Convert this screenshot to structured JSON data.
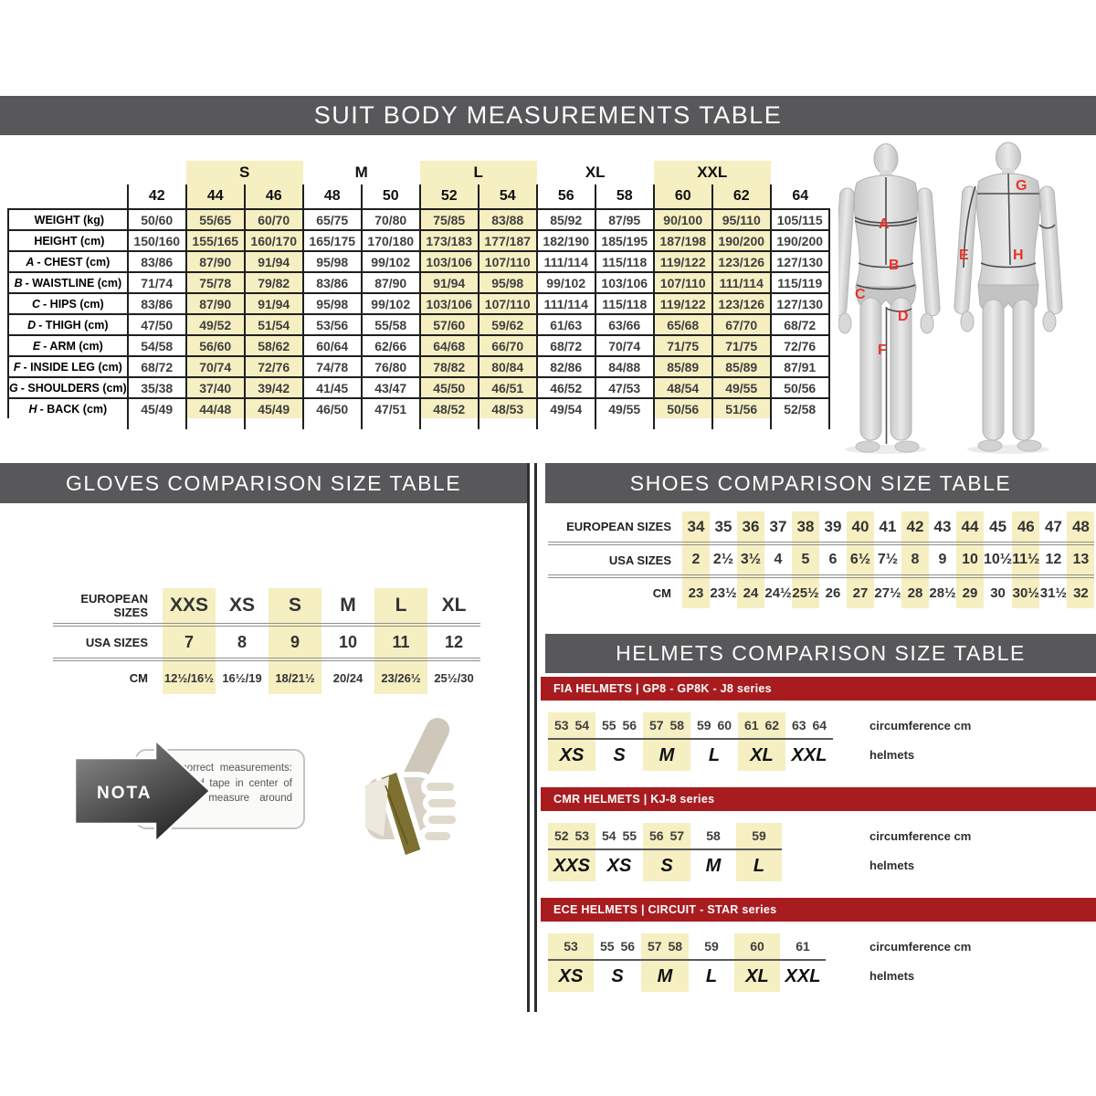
{
  "suit": {
    "title": "SUIT BODY MEASUREMENTS TABLE",
    "groups": [
      {
        "label": "",
        "span": 1,
        "hl": false
      },
      {
        "label": "S",
        "span": 2,
        "hl": true
      },
      {
        "label": "M",
        "span": 2,
        "hl": false
      },
      {
        "label": "L",
        "span": 2,
        "hl": true
      },
      {
        "label": "XL",
        "span": 2,
        "hl": false
      },
      {
        "label": "XXL",
        "span": 2,
        "hl": true
      },
      {
        "label": "",
        "span": 1,
        "hl": false
      }
    ],
    "sizes": [
      "42",
      "44",
      "46",
      "48",
      "50",
      "52",
      "54",
      "56",
      "58",
      "60",
      "62",
      "64"
    ],
    "highlight_cols": [
      1,
      2,
      5,
      6,
      9,
      10
    ],
    "rows": [
      {
        "letter": "",
        "name": "WEIGHT (kg)",
        "values": [
          "50/60",
          "55/65",
          "60/70",
          "65/75",
          "70/80",
          "75/85",
          "83/88",
          "85/92",
          "87/95",
          "90/100",
          "95/110",
          "105/115"
        ]
      },
      {
        "letter": "",
        "name": "HEIGHT (cm)",
        "values": [
          "150/160",
          "155/165",
          "160/170",
          "165/175",
          "170/180",
          "173/183",
          "177/187",
          "182/190",
          "185/195",
          "187/198",
          "190/200",
          "190/200"
        ]
      },
      {
        "letter": "A",
        "name": "- CHEST (cm)",
        "values": [
          "83/86",
          "87/90",
          "91/94",
          "95/98",
          "99/102",
          "103/106",
          "107/110",
          "111/114",
          "115/118",
          "119/122",
          "123/126",
          "127/130"
        ]
      },
      {
        "letter": "B",
        "name": "- WAISTLINE (cm)",
        "values": [
          "71/74",
          "75/78",
          "79/82",
          "83/86",
          "87/90",
          "91/94",
          "95/98",
          "99/102",
          "103/106",
          "107/110",
          "111/114",
          "115/119"
        ]
      },
      {
        "letter": "C",
        "name": "- HIPS (cm)",
        "values": [
          "83/86",
          "87/90",
          "91/94",
          "95/98",
          "99/102",
          "103/106",
          "107/110",
          "111/114",
          "115/118",
          "119/122",
          "123/126",
          "127/130"
        ]
      },
      {
        "letter": "D",
        "name": "- THIGH (cm)",
        "values": [
          "47/50",
          "49/52",
          "51/54",
          "53/56",
          "55/58",
          "57/60",
          "59/62",
          "61/63",
          "63/66",
          "65/68",
          "67/70",
          "68/72"
        ]
      },
      {
        "letter": "E",
        "name": "- ARM (cm)",
        "values": [
          "54/58",
          "56/60",
          "58/62",
          "60/64",
          "62/66",
          "64/68",
          "66/70",
          "68/72",
          "70/74",
          "71/75",
          "71/75",
          "72/76"
        ]
      },
      {
        "letter": "F",
        "name": "- INSIDE LEG (cm)",
        "values": [
          "68/72",
          "70/74",
          "72/76",
          "74/78",
          "76/80",
          "78/82",
          "80/84",
          "82/86",
          "84/88",
          "85/89",
          "85/89",
          "87/91"
        ]
      },
      {
        "letter": "G",
        "name": "- SHOULDERS (cm)",
        "values": [
          "35/38",
          "37/40",
          "39/42",
          "41/45",
          "43/47",
          "45/50",
          "46/51",
          "46/52",
          "47/53",
          "48/54",
          "49/55",
          "50/56"
        ]
      },
      {
        "letter": "H",
        "name": "- BACK (cm)",
        "values": [
          "45/49",
          "44/48",
          "45/49",
          "46/50",
          "47/51",
          "48/52",
          "48/53",
          "49/54",
          "49/55",
          "50/56",
          "51/56",
          "52/58"
        ]
      }
    ]
  },
  "figures": {
    "front_labels": [
      "A",
      "B",
      "C",
      "D",
      "F"
    ],
    "back_labels": [
      "G",
      "E",
      "H"
    ]
  },
  "gloves": {
    "title": "GLOVES COMPARISON SIZE TABLE",
    "row_labels": [
      "EUROPEAN SIZES",
      "USA SIZES",
      "CM"
    ],
    "european": [
      "XXS",
      "XS",
      "S",
      "M",
      "L",
      "XL"
    ],
    "usa": [
      "7",
      "8",
      "9",
      "10",
      "11",
      "12"
    ],
    "cm": [
      "12½/16½",
      "16½/19",
      "18/21½",
      "20/24",
      "23/26½",
      "25½/30"
    ],
    "highlight_cols": [
      0,
      2,
      4
    ],
    "note_label": "NOTA",
    "note_text": "For a correct measurements: please hold tape in center of palm and measure around hand."
  },
  "shoes": {
    "title": "SHOES COMPARISON SIZE TABLE",
    "row_labels": [
      "EUROPEAN SIZES",
      "USA SIZES",
      "CM"
    ],
    "european": [
      "34",
      "35",
      "36",
      "37",
      "38",
      "39",
      "40",
      "41",
      "42",
      "43",
      "44",
      "45",
      "46",
      "47",
      "48"
    ],
    "usa": [
      "2",
      "2½",
      "3½",
      "4",
      "5",
      "6",
      "6½",
      "7½",
      "8",
      "9",
      "10",
      "10½",
      "11½",
      "12",
      "13"
    ],
    "cm": [
      "23",
      "23½",
      "24",
      "24½",
      "25½",
      "26",
      "27",
      "27½",
      "28",
      "28½",
      "29",
      "30",
      "30½",
      "31½",
      "32"
    ],
    "highlight_cols": [
      0,
      2,
      4,
      6,
      8,
      10,
      12,
      14
    ]
  },
  "helmets": {
    "title": "HELMETS COMPARISON SIZE TABLE",
    "col_labels": {
      "circumference": "circumference cm",
      "sizes": "helmets"
    },
    "sections": [
      {
        "band": "FIA HELMETS | GP8 - GP8K - J8 series",
        "groups": [
          {
            "nums": [
              "53",
              "54"
            ],
            "size": "XS",
            "hl": true
          },
          {
            "nums": [
              "55",
              "56"
            ],
            "size": "S",
            "hl": false
          },
          {
            "nums": [
              "57",
              "58"
            ],
            "size": "M",
            "hl": true
          },
          {
            "nums": [
              "59",
              "60"
            ],
            "size": "L",
            "hl": false
          },
          {
            "nums": [
              "61",
              "62"
            ],
            "size": "XL",
            "hl": true
          },
          {
            "nums": [
              "63",
              "64"
            ],
            "size": "XXL",
            "hl": false
          }
        ]
      },
      {
        "band": "CMR HELMETS | KJ-8 series",
        "groups": [
          {
            "nums": [
              "52",
              "53"
            ],
            "size": "XXS",
            "hl": true
          },
          {
            "nums": [
              "54",
              "55"
            ],
            "size": "XS",
            "hl": false
          },
          {
            "nums": [
              "56",
              "57"
            ],
            "size": "S",
            "hl": true
          },
          {
            "nums": [
              "58"
            ],
            "size": "M",
            "hl": false
          },
          {
            "nums": [
              "59"
            ],
            "size": "L",
            "hl": true
          }
        ]
      },
      {
        "band": "ECE HELMETS | CIRCUIT - STAR series",
        "groups": [
          {
            "nums": [
              "53"
            ],
            "size": "XS",
            "hl": true
          },
          {
            "nums": [
              "55",
              "56"
            ],
            "size": "S",
            "hl": false
          },
          {
            "nums": [
              "57",
              "58"
            ],
            "size": "M",
            "hl": true
          },
          {
            "nums": [
              "59"
            ],
            "size": "L",
            "hl": false
          },
          {
            "nums": [
              "60"
            ],
            "size": "XL",
            "hl": true
          },
          {
            "nums": [
              "61"
            ],
            "size": "XXL",
            "hl": false
          }
        ]
      }
    ]
  },
  "colors": {
    "bar_gray": "#58585a",
    "band_red": "#a81c20",
    "highlight_yellow": "#f5efc2",
    "label_red": "#e6332a"
  }
}
